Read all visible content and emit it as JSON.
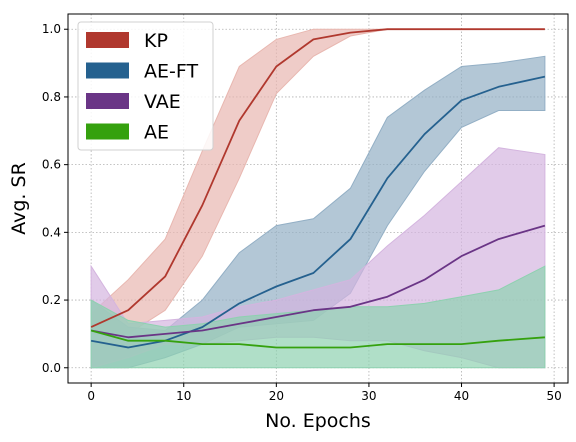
{
  "chart_data": {
    "type": "line",
    "title": "",
    "xlabel": "No. Epochs",
    "ylabel": "Avg. SR",
    "xlim": [
      -2.5,
      51.5
    ],
    "ylim": [
      -0.045,
      1.045
    ],
    "x_ticks": [
      0,
      10,
      20,
      30,
      40,
      50
    ],
    "y_ticks": [
      0.0,
      0.2,
      0.4,
      0.6,
      0.8,
      1.0
    ],
    "x_tick_labels": [
      "0",
      "10",
      "20",
      "30",
      "40",
      "50"
    ],
    "y_tick_labels": [
      "0.0",
      "0.2",
      "0.4",
      "0.6",
      "0.8",
      "1.0"
    ],
    "grid": true,
    "legend_position": "top-left",
    "x": [
      0,
      4,
      8,
      12,
      16,
      20,
      24,
      28,
      32,
      36,
      40,
      44,
      49
    ],
    "series": [
      {
        "name": "KP",
        "color": "#b0382e",
        "fill": "#e8b7b0",
        "mean": [
          0.12,
          0.17,
          0.27,
          0.48,
          0.73,
          0.89,
          0.97,
          0.99,
          1.0,
          1.0,
          1.0,
          1.0,
          1.0
        ],
        "lower": [
          0.1,
          0.1,
          0.17,
          0.33,
          0.56,
          0.81,
          0.92,
          0.98,
          1.0,
          1.0,
          1.0,
          1.0,
          1.0
        ],
        "upper": [
          0.16,
          0.26,
          0.38,
          0.64,
          0.89,
          0.97,
          1.0,
          1.0,
          1.0,
          1.0,
          1.0,
          1.0,
          1.0
        ]
      },
      {
        "name": "AE-FT",
        "color": "#25618f",
        "fill": "#93afc5",
        "mean": [
          0.08,
          0.06,
          0.08,
          0.12,
          0.19,
          0.24,
          0.28,
          0.38,
          0.56,
          0.69,
          0.79,
          0.83,
          0.86
        ],
        "lower": [
          0.0,
          0.0,
          0.03,
          0.07,
          0.12,
          0.13,
          0.14,
          0.22,
          0.42,
          0.58,
          0.71,
          0.76,
          0.76
        ],
        "upper": [
          0.2,
          0.12,
          0.11,
          0.2,
          0.34,
          0.42,
          0.44,
          0.53,
          0.74,
          0.82,
          0.89,
          0.9,
          0.92
        ]
      },
      {
        "name": "VAE",
        "color": "#6a3586",
        "fill": "#d4b5df",
        "mean": [
          0.11,
          0.09,
          0.1,
          0.11,
          0.13,
          0.15,
          0.17,
          0.18,
          0.21,
          0.26,
          0.33,
          0.38,
          0.42
        ],
        "lower": [
          0.0,
          0.03,
          0.07,
          0.07,
          0.08,
          0.09,
          0.09,
          0.08,
          0.08,
          0.05,
          0.03,
          0.0,
          0.0
        ],
        "upper": [
          0.3,
          0.13,
          0.14,
          0.15,
          0.18,
          0.2,
          0.23,
          0.26,
          0.36,
          0.45,
          0.55,
          0.65,
          0.63
        ]
      },
      {
        "name": "AE",
        "color": "#35a10e",
        "fill": "#8ed1b0",
        "mean": [
          0.11,
          0.08,
          0.08,
          0.07,
          0.07,
          0.06,
          0.06,
          0.06,
          0.07,
          0.07,
          0.07,
          0.08,
          0.09
        ],
        "lower": [
          0.0,
          0.0,
          0.0,
          0.0,
          0.0,
          0.0,
          0.0,
          0.0,
          0.0,
          0.0,
          0.0,
          0.0,
          0.0
        ],
        "upper": [
          0.2,
          0.14,
          0.12,
          0.13,
          0.15,
          0.16,
          0.17,
          0.18,
          0.18,
          0.19,
          0.21,
          0.23,
          0.3
        ]
      }
    ]
  }
}
